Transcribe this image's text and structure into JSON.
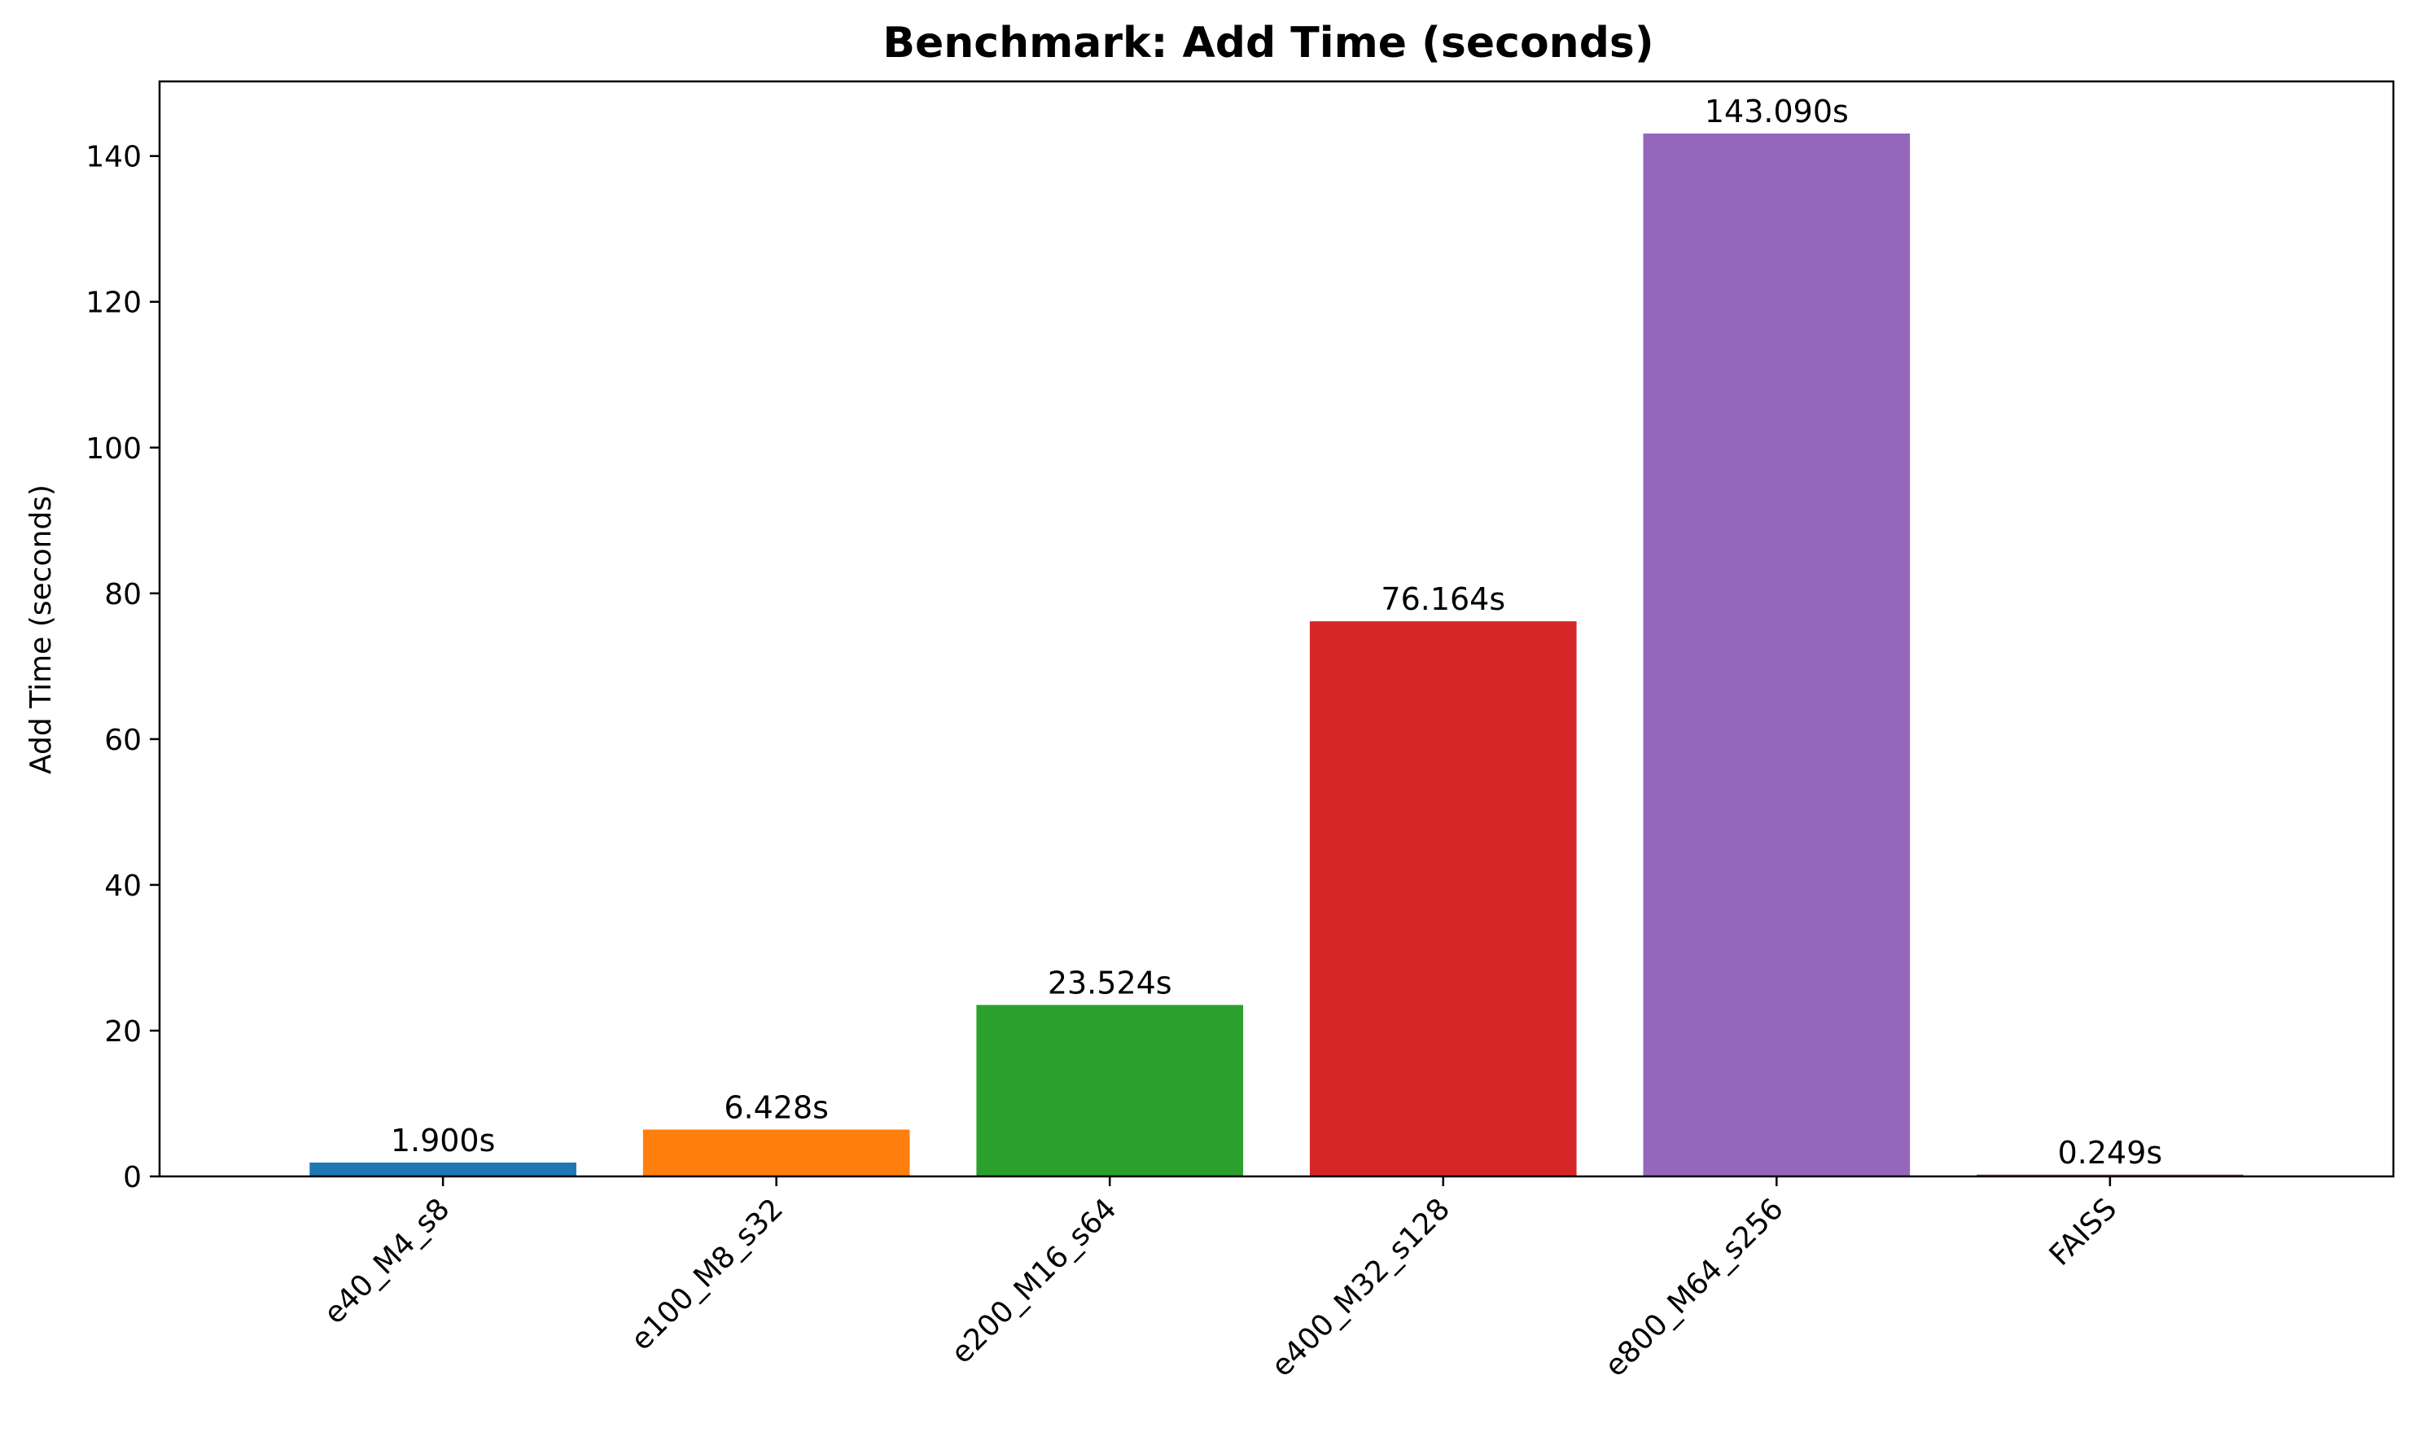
{
  "chart_data": {
    "type": "bar",
    "title": "Benchmark: Add Time (seconds)",
    "xlabel": "",
    "ylabel": "Add Time (seconds)",
    "categories": [
      "e40_M4_s8",
      "e100_M8_s32",
      "e200_M16_s64",
      "e400_M32_s128",
      "e800_M64_s256",
      "FAISS"
    ],
    "values": [
      1.9,
      6.428,
      23.524,
      76.164,
      143.09,
      0.249
    ],
    "data_labels": [
      "1.900s",
      "6.428s",
      "23.524s",
      "76.164s",
      "143.090s",
      "0.249s"
    ],
    "colors": [
      "#1f77b4",
      "#ff7f0e",
      "#2ca02c",
      "#d62728",
      "#9467bd",
      "#8c564b"
    ],
    "ylim": [
      0,
      150.24
    ],
    "yticks": [
      0,
      20,
      40,
      60,
      80,
      100,
      120,
      140
    ],
    "grid": false,
    "legend": "none"
  }
}
